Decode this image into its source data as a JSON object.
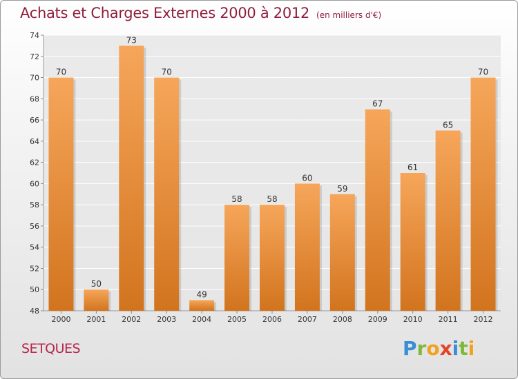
{
  "header": {
    "title": "Achats et Charges Externes 2000 à 2012",
    "subtitle": "(en milliers d'€)"
  },
  "footer": {
    "commune": "SETQUES",
    "brand_parts": [
      "P",
      "r",
      "o",
      "x",
      "i",
      "t",
      "i"
    ]
  },
  "colors": {
    "bar_light": "#f6a65a",
    "bar_dark": "#d2741e",
    "title": "#8f1d3c",
    "commune": "#b8264f"
  },
  "chart_data": {
    "type": "bar",
    "title": "Achats et Charges Externes 2000 à 2012",
    "subtitle": "(en milliers d'€)",
    "xlabel": "",
    "ylabel": "",
    "categories": [
      "2000",
      "2001",
      "2002",
      "2003",
      "2004",
      "2005",
      "2006",
      "2007",
      "2008",
      "2009",
      "2010",
      "2011",
      "2012"
    ],
    "values": [
      70,
      50,
      73,
      70,
      49,
      58,
      58,
      60,
      59,
      67,
      61,
      65,
      70
    ],
    "data_labels": [
      "70",
      "50",
      "73",
      "70",
      "49",
      "58",
      "58",
      "60",
      "59",
      "67",
      "61",
      "65",
      "70"
    ],
    "ylim": [
      48,
      74
    ],
    "yticks": [
      48,
      50,
      52,
      54,
      56,
      58,
      60,
      62,
      64,
      66,
      68,
      70,
      72,
      74
    ],
    "grid": true,
    "legend": "none"
  }
}
